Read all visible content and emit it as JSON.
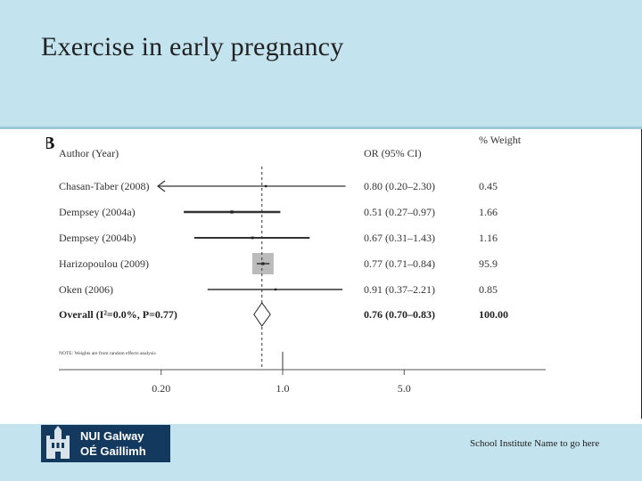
{
  "slide": {
    "title": "Exercise in early pregnancy"
  },
  "footer": {
    "logo_line1": "NUI Galway",
    "logo_line2": "OÉ Gaillimh",
    "institute_text": "School Institute Name to go here"
  },
  "colors": {
    "header_bg": "#c3e3ef",
    "logo_bg": "#14395f"
  },
  "chart_data": {
    "type": "forest",
    "panel_label": "B",
    "headers": {
      "study": "Author (Year)",
      "or": "OR (95% CI)",
      "weight": "% Weight"
    },
    "studies": [
      {
        "label": "Chasan-Taber (2008)",
        "or": 0.8,
        "lo": 0.2,
        "hi": 2.3,
        "or_text": "0.80 (0.20–2.30)",
        "weight": 0.45,
        "weight_text": "0.45",
        "arrow_left": true
      },
      {
        "label": "Dempsey (2004a)",
        "or": 0.51,
        "lo": 0.27,
        "hi": 0.97,
        "or_text": "0.51 (0.27–0.97)",
        "weight": 1.66,
        "weight_text": "1.66"
      },
      {
        "label": "Dempsey (2004b)",
        "or": 0.67,
        "lo": 0.31,
        "hi": 1.43,
        "or_text": "0.67 (0.31–1.43)",
        "weight": 1.16,
        "weight_text": "1.16"
      },
      {
        "label": "Harizopoulou (2009)",
        "or": 0.77,
        "lo": 0.71,
        "hi": 0.84,
        "or_text": "0.77 (0.71–0.84)",
        "weight": 95.9,
        "weight_text": "95.9"
      },
      {
        "label": "Oken (2006)",
        "or": 0.91,
        "lo": 0.37,
        "hi": 2.21,
        "or_text": "0.91 (0.37–2.21)",
        "weight": 0.85,
        "weight_text": "0.85"
      }
    ],
    "overall": {
      "label": "Overall (I²=0.0%, P=0.77)",
      "or": 0.76,
      "lo": 0.7,
      "hi": 0.83,
      "or_text": "0.76 (0.70–0.83)",
      "weight_text": "100.00"
    },
    "note": "NOTE: Weights are from random effects analysis",
    "x_scale": "log",
    "x_ticks": [
      {
        "value": 0.2,
        "label": "0.20"
      },
      {
        "value": 1.0,
        "label": "1.0"
      },
      {
        "value": 5.0,
        "label": "5.0"
      }
    ],
    "null_value": 1.0
  }
}
